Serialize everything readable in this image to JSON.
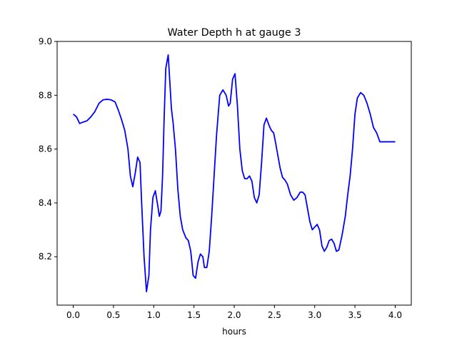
{
  "chart_data": {
    "type": "line",
    "title": "Water Depth h at gauge 3",
    "xlabel": "hours",
    "ylabel": "",
    "xlim": [
      -0.2,
      4.2
    ],
    "ylim": [
      8.02,
      9.0
    ],
    "xticks": [
      {
        "value": 0.0,
        "label": "0.0"
      },
      {
        "value": 0.5,
        "label": "0.5"
      },
      {
        "value": 1.0,
        "label": "1.0"
      },
      {
        "value": 1.5,
        "label": "1.5"
      },
      {
        "value": 2.0,
        "label": "2.0"
      },
      {
        "value": 2.5,
        "label": "2.5"
      },
      {
        "value": 3.0,
        "label": "3.0"
      },
      {
        "value": 3.5,
        "label": "3.5"
      },
      {
        "value": 4.0,
        "label": "4.0"
      }
    ],
    "yticks": [
      {
        "value": 8.2,
        "label": "8.2"
      },
      {
        "value": 8.4,
        "label": "8.4"
      },
      {
        "value": 8.6,
        "label": "8.6"
      },
      {
        "value": 8.8,
        "label": "8.8"
      },
      {
        "value": 9.0,
        "label": "9.0"
      }
    ],
    "grid": false,
    "series": [
      {
        "color": "#0000ff",
        "x": [
          0.0,
          0.04,
          0.08,
          0.12,
          0.17,
          0.22,
          0.27,
          0.32,
          0.37,
          0.42,
          0.47,
          0.52,
          0.56,
          0.6,
          0.64,
          0.68,
          0.71,
          0.74,
          0.77,
          0.8,
          0.83,
          0.85,
          0.88,
          0.91,
          0.94,
          0.96,
          0.99,
          1.02,
          1.05,
          1.07,
          1.09,
          1.11,
          1.13,
          1.15,
          1.18,
          1.2,
          1.22,
          1.24,
          1.27,
          1.3,
          1.33,
          1.36,
          1.4,
          1.43,
          1.46,
          1.49,
          1.52,
          1.55,
          1.58,
          1.61,
          1.63,
          1.66,
          1.69,
          1.72,
          1.75,
          1.78,
          1.82,
          1.86,
          1.9,
          1.93,
          1.95,
          1.98,
          2.01,
          2.04,
          2.07,
          2.1,
          2.13,
          2.16,
          2.19,
          2.22,
          2.25,
          2.28,
          2.31,
          2.34,
          2.37,
          2.4,
          2.43,
          2.46,
          2.49,
          2.51,
          2.54,
          2.57,
          2.6,
          2.63,
          2.66,
          2.7,
          2.74,
          2.78,
          2.82,
          2.85,
          2.88,
          2.91,
          2.94,
          2.97,
          3.0,
          3.03,
          3.06,
          3.09,
          3.12,
          3.15,
          3.18,
          3.21,
          3.24,
          3.27,
          3.3,
          3.34,
          3.38,
          3.41,
          3.44,
          3.47,
          3.5,
          3.53,
          3.57,
          3.61,
          3.65,
          3.69,
          3.73,
          3.77,
          3.81,
          3.84,
          3.87,
          3.9,
          3.94,
          3.97,
          4.0
        ],
        "y": [
          8.73,
          8.72,
          8.695,
          8.7,
          8.705,
          8.72,
          8.74,
          8.77,
          8.783,
          8.785,
          8.783,
          8.775,
          8.745,
          8.71,
          8.67,
          8.6,
          8.5,
          8.46,
          8.51,
          8.57,
          8.55,
          8.4,
          8.2,
          8.07,
          8.13,
          8.3,
          8.42,
          8.445,
          8.39,
          8.35,
          8.37,
          8.5,
          8.72,
          8.9,
          8.95,
          8.85,
          8.75,
          8.7,
          8.6,
          8.45,
          8.35,
          8.3,
          8.27,
          8.26,
          8.22,
          8.13,
          8.12,
          8.18,
          8.21,
          8.2,
          8.16,
          8.16,
          8.22,
          8.35,
          8.5,
          8.65,
          8.8,
          8.82,
          8.8,
          8.76,
          8.77,
          8.86,
          8.88,
          8.76,
          8.6,
          8.52,
          8.49,
          8.49,
          8.5,
          8.48,
          8.42,
          8.4,
          8.43,
          8.55,
          8.69,
          8.715,
          8.69,
          8.67,
          8.66,
          8.63,
          8.58,
          8.53,
          8.495,
          8.485,
          8.47,
          8.43,
          8.41,
          8.42,
          8.44,
          8.44,
          8.43,
          8.38,
          8.33,
          8.3,
          8.31,
          8.32,
          8.3,
          8.24,
          8.22,
          8.235,
          8.26,
          8.265,
          8.25,
          8.22,
          8.225,
          8.28,
          8.35,
          8.43,
          8.5,
          8.6,
          8.73,
          8.79,
          8.81,
          8.8,
          8.77,
          8.73,
          8.68,
          8.66,
          8.627,
          8.627,
          8.627,
          8.627,
          8.627,
          8.627,
          8.627
        ]
      }
    ]
  }
}
